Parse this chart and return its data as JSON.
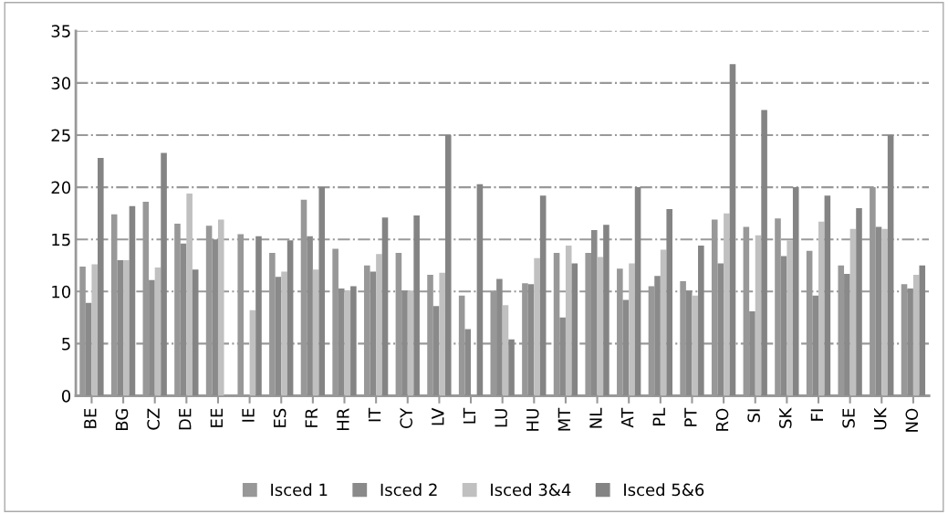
{
  "chart_data": {
    "type": "bar",
    "categories": [
      "BE",
      "BG",
      "CZ",
      "DE",
      "EE",
      "IE",
      "ES",
      "FR",
      "HR",
      "IT",
      "CY",
      "LV",
      "LT",
      "LU",
      "HU",
      "MT",
      "NL",
      "AT",
      "PL",
      "PT",
      "RO",
      "SI",
      "SK",
      "FI",
      "SE",
      "UK",
      "NO"
    ],
    "series": [
      {
        "name": "Isced 1",
        "color": "#989898",
        "values": [
          12.4,
          17.4,
          18.6,
          16.5,
          16.3,
          15.5,
          13.7,
          18.8,
          14.1,
          12.5,
          13.7,
          11.6,
          9.6,
          10.1,
          10.8,
          13.7,
          13.7,
          12.2,
          10.5,
          11.0,
          16.9,
          16.2,
          17.0,
          13.9,
          12.5,
          20.0,
          10.7
        ]
      },
      {
        "name": "Isced 2",
        "color": "#8a8a8a",
        "values": [
          8.9,
          13.0,
          11.1,
          14.6,
          15.0,
          null,
          11.4,
          15.3,
          10.3,
          11.9,
          10.1,
          8.6,
          6.4,
          11.2,
          10.7,
          7.5,
          15.9,
          9.2,
          11.5,
          10.1,
          12.7,
          8.1,
          13.4,
          9.6,
          11.7,
          16.2,
          10.3
        ]
      },
      {
        "name": "Isced 3&4",
        "color": "#c0c0c0",
        "values": [
          12.6,
          13.0,
          12.3,
          19.4,
          16.9,
          8.2,
          11.9,
          12.1,
          10.1,
          13.6,
          10.1,
          11.8,
          null,
          8.7,
          13.2,
          14.4,
          13.3,
          12.7,
          14.0,
          9.6,
          17.5,
          15.4,
          14.9,
          16.7,
          16.0,
          16.0,
          11.6
        ]
      },
      {
        "name": "Isced 5&6",
        "color": "#848484",
        "values": [
          22.8,
          18.2,
          23.3,
          12.1,
          null,
          15.3,
          14.9,
          20.0,
          10.5,
          17.1,
          17.3,
          25.0,
          20.3,
          5.4,
          19.2,
          12.7,
          16.4,
          20.0,
          17.9,
          14.4,
          31.8,
          27.4,
          20.0,
          19.2,
          18.0,
          25.0,
          12.5
        ]
      }
    ],
    "ylim": [
      0,
      35
    ],
    "yticks": [
      0,
      5,
      10,
      15,
      20,
      25,
      30,
      35
    ],
    "grid": "y",
    "legend": "bottom"
  }
}
